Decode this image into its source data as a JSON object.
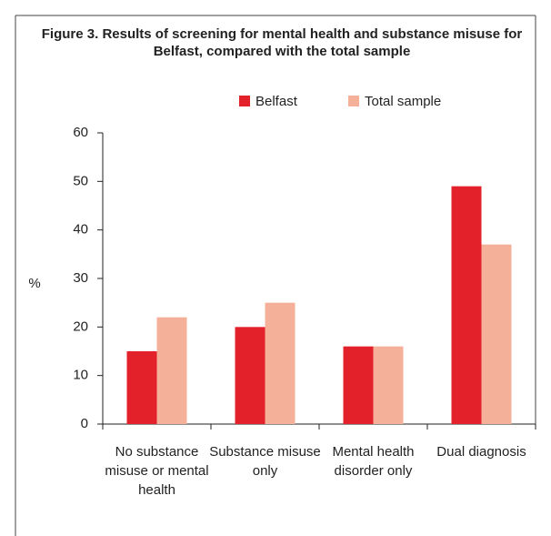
{
  "chart_data": {
    "type": "bar",
    "title": "Figure 3. Results of screening for mental health and substance misuse for Belfast, compared with the total sample",
    "ylabel": "%",
    "categories": [
      "No substance misuse or mental health",
      "Substance misuse only",
      "Mental health disorder only",
      "Dual diagnosis"
    ],
    "series": [
      {
        "name": "Belfast",
        "color": "#e3212b",
        "values": [
          15,
          20,
          16,
          49
        ]
      },
      {
        "name": "Total sample",
        "color": "#f5b09a",
        "values": [
          22,
          25,
          16,
          37
        ]
      }
    ],
    "ylim": [
      0,
      60
    ],
    "yticks": [
      0,
      10,
      20,
      30,
      40,
      50,
      60
    ],
    "legend": "top"
  }
}
